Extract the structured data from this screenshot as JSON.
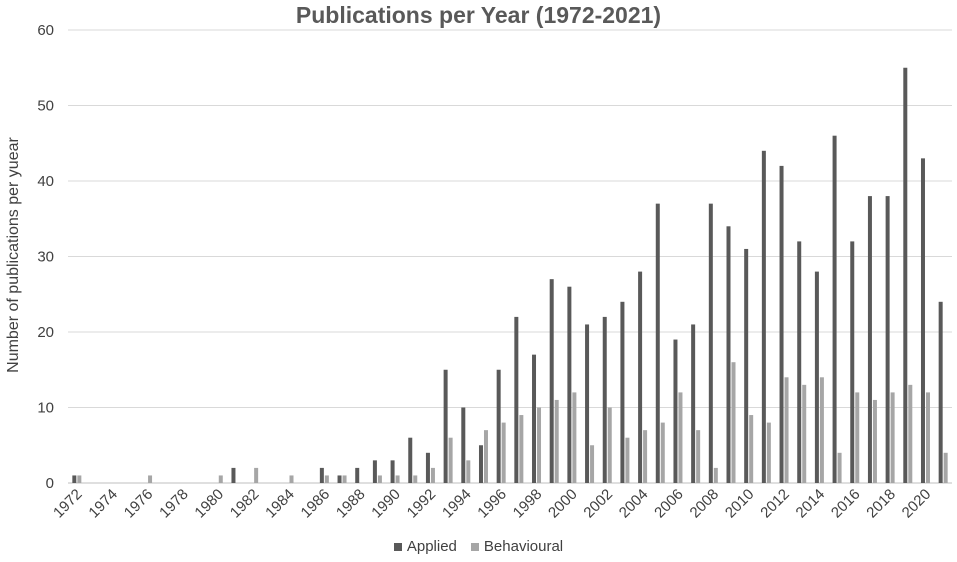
{
  "chart_data": {
    "type": "bar",
    "title": "Publications per Year (1972-2021)",
    "xlabel": "",
    "ylabel": "Number of publications per yuear",
    "ylim": [
      0,
      60
    ],
    "yticks": [
      0,
      10,
      20,
      30,
      40,
      50,
      60
    ],
    "grid": true,
    "legend_position": "bottom",
    "categories": [
      "1972",
      "1973",
      "1974",
      "1975",
      "1976",
      "1977",
      "1978",
      "1979",
      "1980",
      "1981",
      "1982",
      "1983",
      "1984",
      "1985",
      "1986",
      "1987",
      "1988",
      "1989",
      "1990",
      "1991",
      "1992",
      "1993",
      "1994",
      "1995",
      "1996",
      "1997",
      "1998",
      "1999",
      "2000",
      "2001",
      "2002",
      "2003",
      "2004",
      "2005",
      "2006",
      "2007",
      "2008",
      "2009",
      "2010",
      "2011",
      "2012",
      "2013",
      "2014",
      "2015",
      "2016",
      "2017",
      "2018",
      "2019",
      "2020",
      "2021"
    ],
    "tick_labels": [
      "1972",
      "1974",
      "1976",
      "1978",
      "1980",
      "1982",
      "1984",
      "1986",
      "1988",
      "1990",
      "1992",
      "1994",
      "1996",
      "1998",
      "2000",
      "2002",
      "2004",
      "2006",
      "2008",
      "2010",
      "2012",
      "2014",
      "2016",
      "2018",
      "2020"
    ],
    "series": [
      {
        "name": "Applied",
        "color": "#595959",
        "values": [
          1,
          0,
          0,
          0,
          0,
          0,
          0,
          0,
          0,
          2,
          0,
          0,
          0,
          0,
          2,
          1,
          2,
          3,
          3,
          6,
          4,
          15,
          10,
          5,
          15,
          22,
          17,
          27,
          26,
          21,
          22,
          24,
          28,
          37,
          19,
          21,
          37,
          34,
          31,
          44,
          42,
          32,
          28,
          46,
          32,
          38,
          38,
          55,
          43,
          24
        ]
      },
      {
        "name": "Behavioural",
        "color": "#a6a6a6",
        "values": [
          1,
          0,
          0,
          0,
          1,
          0,
          0,
          0,
          1,
          0,
          2,
          0,
          1,
          0,
          1,
          1,
          0,
          1,
          1,
          1,
          2,
          6,
          3,
          7,
          8,
          9,
          10,
          11,
          12,
          5,
          10,
          6,
          7,
          8,
          12,
          7,
          2,
          16,
          9,
          8,
          14,
          13,
          14,
          4,
          12,
          11,
          12,
          13,
          12,
          4
        ]
      }
    ]
  }
}
